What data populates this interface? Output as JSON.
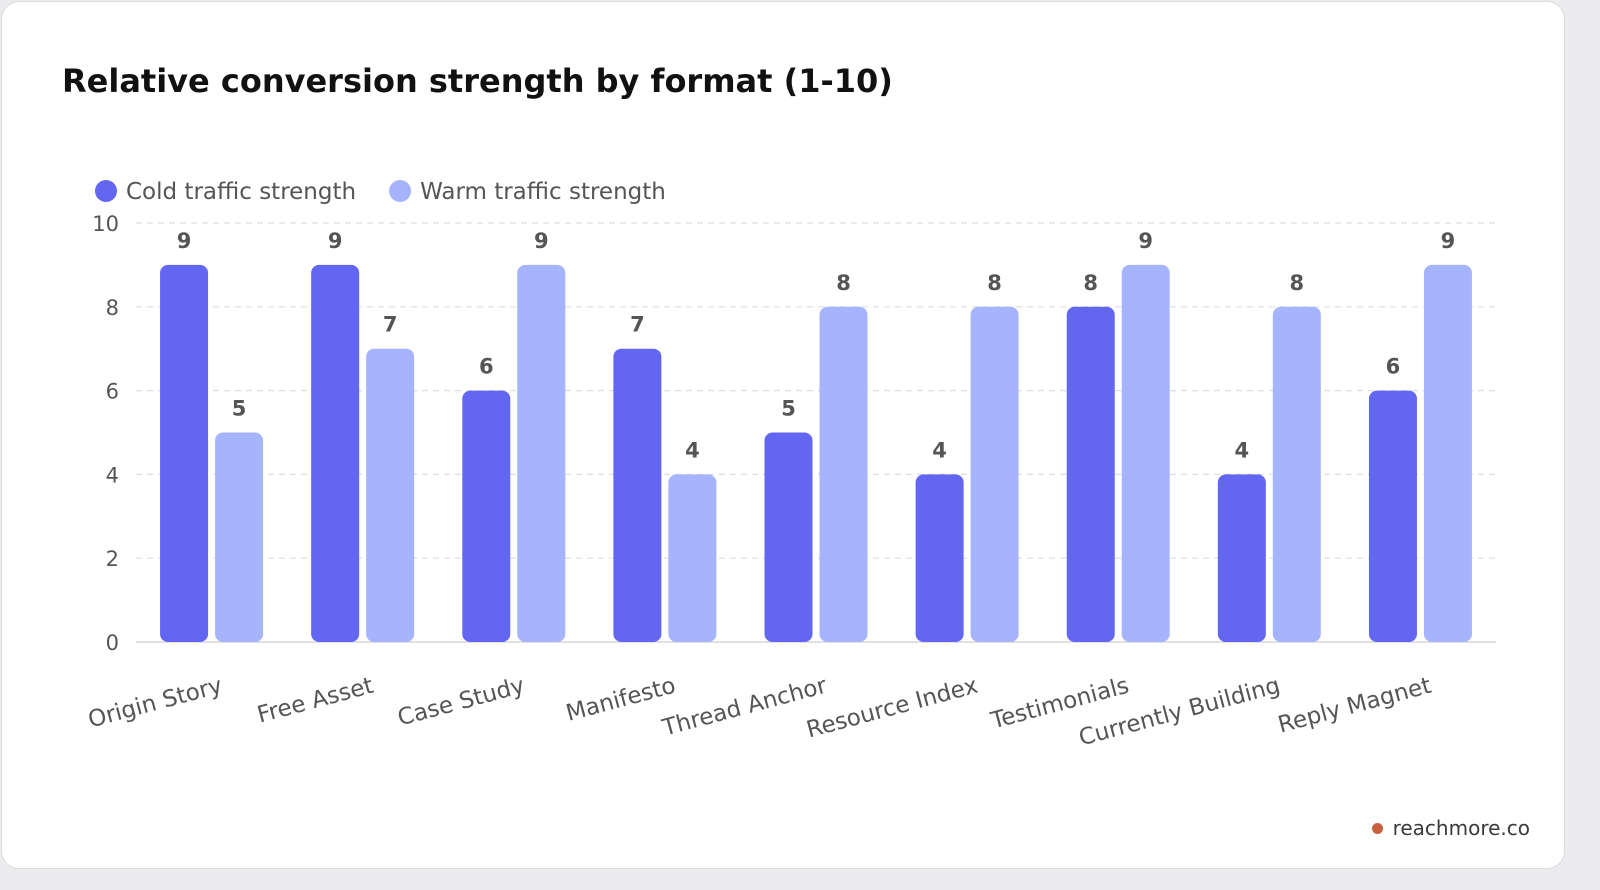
{
  "chart_data": {
    "type": "bar",
    "title": "Relative conversion strength by format (1-10)",
    "categories": [
      "Origin Story",
      "Free Asset",
      "Case Study",
      "Manifesto",
      "Thread Anchor",
      "Resource Index",
      "Testimonials",
      "Currently Building",
      "Reply Magnet"
    ],
    "series": [
      {
        "name": "Cold traffic strength",
        "values": [
          9,
          9,
          6,
          7,
          5,
          4,
          8,
          4,
          6
        ],
        "color": "#6366f1"
      },
      {
        "name": "Warm traffic strength",
        "values": [
          5,
          7,
          9,
          4,
          8,
          8,
          9,
          8,
          9
        ],
        "color": "#a5b4fc"
      }
    ],
    "ylim": [
      0,
      10
    ],
    "yticks": [
      0,
      2,
      4,
      6,
      8,
      10
    ],
    "grid": true,
    "legend_position": "top-left",
    "data_labels": true
  },
  "branding": {
    "text": "reachmore.co",
    "dot_color": "#c8613f"
  }
}
